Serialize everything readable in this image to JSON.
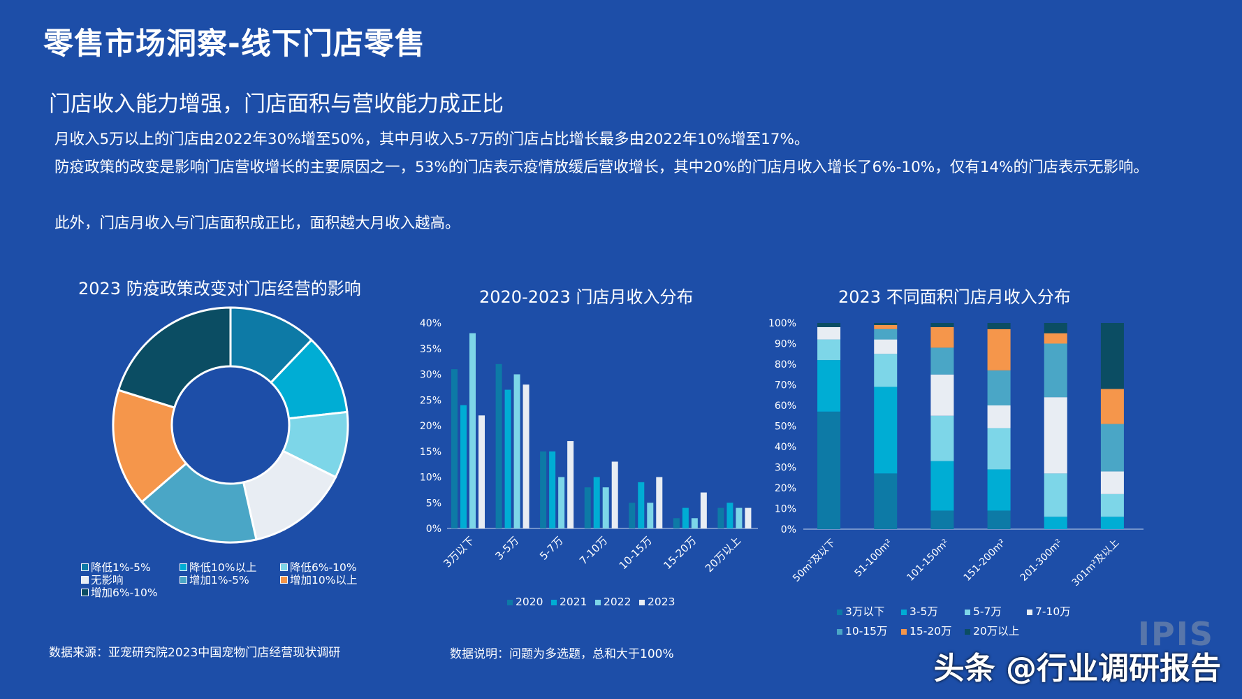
{
  "header": {
    "title": "零售市场洞察-线下门店零售",
    "subtitle": "门店收入能力增强，门店面积与营收能力成正比"
  },
  "paragraphs": {
    "p1": "月收入5万以上的门店由2022年30%增至50%，其中月收入5-7万的门店占比增长最多由2022年10%增至17%。",
    "p2": "防疫政策的改变是影响门店营收增长的主要原因之一，53%的门店表示疫情放缓后营收增长，其中20%的门店月收入增长了6%-10%，仅有14%的门店表示无影响。",
    "p3": "此外，门店月收入与门店面积成正比，面积越大月收入越高。"
  },
  "footer": {
    "source": "数据来源：亚宠研究院2023中国宠物门店经营现状调研",
    "note": "数据说明：问题为多选题，总和大于100%",
    "watermark": "头条 @行业调研报告",
    "logo_text": "IPIS"
  },
  "colors": {
    "background": "#1d4ea8",
    "c1": "#0d7aa6",
    "c2": "#00add4",
    "c3": "#7dd6e8",
    "c4": "#e8edf3",
    "c5": "#4aa6c6",
    "c6": "#f5964b",
    "c7": "#0b4d63"
  },
  "chart_data": [
    {
      "type": "pie",
      "title": "2023 防疫政策改变对门店经营的影响",
      "slices": [
        {
          "label": "降低1%-5%",
          "value": 12,
          "color": "#0d7aa6"
        },
        {
          "label": "降低10%以上",
          "value": 11,
          "color": "#00add4"
        },
        {
          "label": "降低6%-10%",
          "value": 9,
          "color": "#7dd6e8"
        },
        {
          "label": "无影响",
          "value": 14,
          "color": "#e8edf3"
        },
        {
          "label": "增加1%-5%",
          "value": 17,
          "color": "#4aa6c6"
        },
        {
          "label": "增加10%以上",
          "value": 16,
          "color": "#f5964b"
        },
        {
          "label": "增加6%-10%",
          "value": 20,
          "color": "#0b4d63"
        }
      ]
    },
    {
      "type": "bar",
      "title": "2020-2023 门店月收入分布",
      "categories": [
        "3万以下",
        "3-5万",
        "5-7万",
        "7-10万",
        "10-15万",
        "15-20万",
        "20万以上"
      ],
      "series": [
        {
          "name": "2020",
          "color": "#0d7aa6",
          "values": [
            31,
            32,
            15,
            8,
            5,
            2,
            4
          ]
        },
        {
          "name": "2021",
          "color": "#00add4",
          "values": [
            24,
            27,
            15,
            10,
            9,
            4,
            5
          ]
        },
        {
          "name": "2022",
          "color": "#7dd6e8",
          "values": [
            38,
            30,
            10,
            8,
            5,
            2,
            4
          ]
        },
        {
          "name": "2023",
          "color": "#e8edf3",
          "values": [
            22,
            28,
            17,
            13,
            10,
            7,
            4
          ]
        }
      ],
      "ylim": [
        0,
        40
      ],
      "yticks": [
        "0%",
        "5%",
        "10%",
        "15%",
        "20%",
        "25%",
        "30%",
        "35%",
        "40%"
      ],
      "grid": false,
      "legend": "bottom"
    },
    {
      "type": "bar",
      "stacked": true,
      "title": "2023 不同面积门店月收入分布",
      "categories": [
        "50m²及以下",
        "51-100m²",
        "101-150m²",
        "151-200m²",
        "201-300m²",
        "301m²及以上"
      ],
      "series": [
        {
          "name": "3万以下",
          "color": "#0d7aa6",
          "values": [
            57,
            27,
            9,
            9,
            0,
            0
          ]
        },
        {
          "name": "3-5万",
          "color": "#00add4",
          "values": [
            25,
            42,
            24,
            20,
            6,
            6
          ]
        },
        {
          "name": "5-7万",
          "color": "#7dd6e8",
          "values": [
            10,
            16,
            22,
            20,
            21,
            11
          ]
        },
        {
          "name": "7-10万",
          "color": "#e8edf3",
          "values": [
            6,
            7,
            20,
            11,
            37,
            11
          ]
        },
        {
          "name": "10-15万",
          "color": "#4aa6c6",
          "values": [
            0,
            5,
            13,
            17,
            26,
            23
          ]
        },
        {
          "name": "15-20万",
          "color": "#f5964b",
          "values": [
            0,
            2,
            10,
            20,
            5,
            17
          ]
        },
        {
          "name": "20万以上",
          "color": "#0b4d63",
          "values": [
            2,
            1,
            2,
            3,
            5,
            32
          ]
        }
      ],
      "ylim": [
        0,
        100
      ],
      "yticks": [
        "0%",
        "10%",
        "20%",
        "30%",
        "40%",
        "50%",
        "60%",
        "70%",
        "80%",
        "90%",
        "100%"
      ],
      "grid": false,
      "legend": "bottom"
    }
  ]
}
